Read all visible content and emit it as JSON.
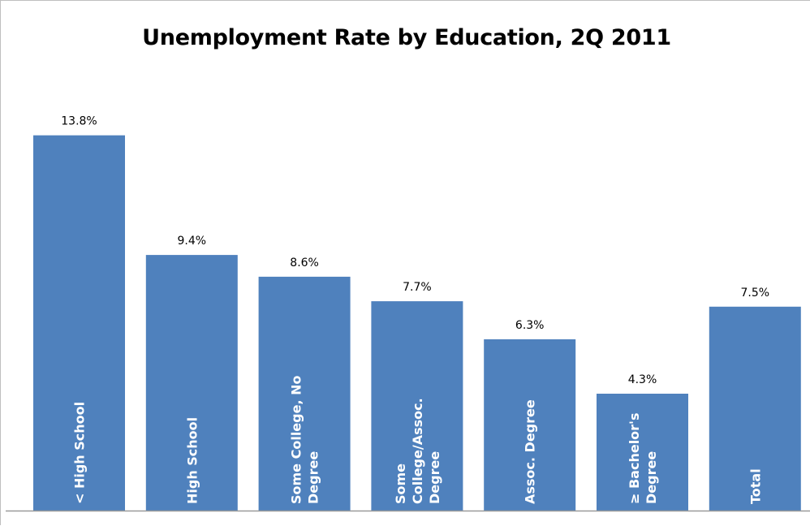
{
  "chart_data": {
    "type": "bar",
    "title": "Unemployment Rate by Education, 2Q 2011",
    "xlabel": "",
    "ylabel": "",
    "ylim": [
      0,
      15
    ],
    "grid": false,
    "legend": "none",
    "bar_color": "#4f81bd",
    "categories": [
      [
        "< High School"
      ],
      [
        "High School"
      ],
      [
        "Some College, No",
        "Degree"
      ],
      [
        "Some",
        "College/Assoc.",
        "Degree"
      ],
      [
        "Assoc.  Degree"
      ],
      [
        "≥ Bachelor's",
        "Degree"
      ],
      [
        "Total"
      ]
    ],
    "values": [
      13.8,
      9.4,
      8.6,
      7.7,
      6.3,
      4.3,
      7.5
    ],
    "data_labels": [
      "13.8%",
      "9.4%",
      "8.6%",
      "7.7%",
      "6.3%",
      "4.3%",
      "7.5%"
    ]
  }
}
